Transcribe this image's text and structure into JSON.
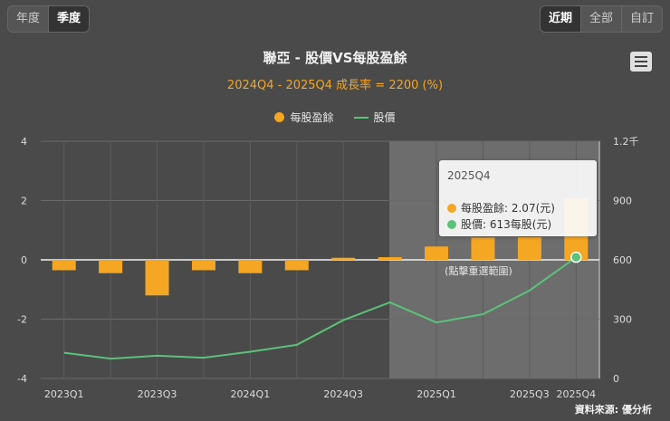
{
  "period_tabs": {
    "annual": "年度",
    "quarterly": "季度"
  },
  "range_tabs": {
    "recent": "近期",
    "all": "全部",
    "custom": "自訂"
  },
  "menu_icon": "hamburger-menu-icon",
  "colors": {
    "eps": "#f5a623",
    "price": "#5cc27a",
    "background": "#4a4a4a"
  },
  "chart_data": {
    "type": "bar",
    "title": "聯亞 - 股價VS每股盈餘",
    "subtitle": "2024Q4 - 2025Q4 成長率 = 2200 (%)",
    "categories": [
      "2023Q1",
      "2023Q2",
      "2023Q3",
      "2023Q4",
      "2024Q1",
      "2024Q2",
      "2024Q3",
      "2024Q4",
      "2025Q1",
      "2025Q2",
      "2025Q3",
      "2025Q4"
    ],
    "x_tick_labels": [
      "2023Q1",
      "",
      "2023Q3",
      "",
      "2024Q1",
      "",
      "2024Q3",
      "",
      "2025Q1",
      "",
      "2025Q3",
      "2025Q4"
    ],
    "series": [
      {
        "name": "每股盈餘",
        "type": "bar",
        "axis": "left",
        "values": [
          -0.35,
          -0.45,
          -1.2,
          -0.35,
          -0.45,
          -0.35,
          0.07,
          0.09,
          0.45,
          0.75,
          0.76,
          2.07
        ]
      },
      {
        "name": "股價",
        "type": "line",
        "axis": "right",
        "values": [
          130,
          100,
          115,
          105,
          135,
          170,
          295,
          385,
          283,
          325,
          445,
          613
        ]
      }
    ],
    "y_left": {
      "ylim": [
        -4,
        4
      ],
      "ticks": [
        "4",
        "2",
        "0",
        "-2",
        "-4"
      ]
    },
    "y_right": {
      "ylim": [
        0,
        1200
      ],
      "ticks": [
        "1.2千",
        "900",
        "600",
        "300",
        "0"
      ]
    },
    "highlight": {
      "from": "2024Q4",
      "to": "2025Q4",
      "label": "(點擊重選範圍)"
    },
    "tooltip": {
      "title": "2025Q4",
      "eps_row": "每股盈餘: 2.07(元)",
      "price_row": "股價: 613每股(元)"
    },
    "legend": "top-center",
    "grid": true
  },
  "footer": "資料來源: 優分析"
}
